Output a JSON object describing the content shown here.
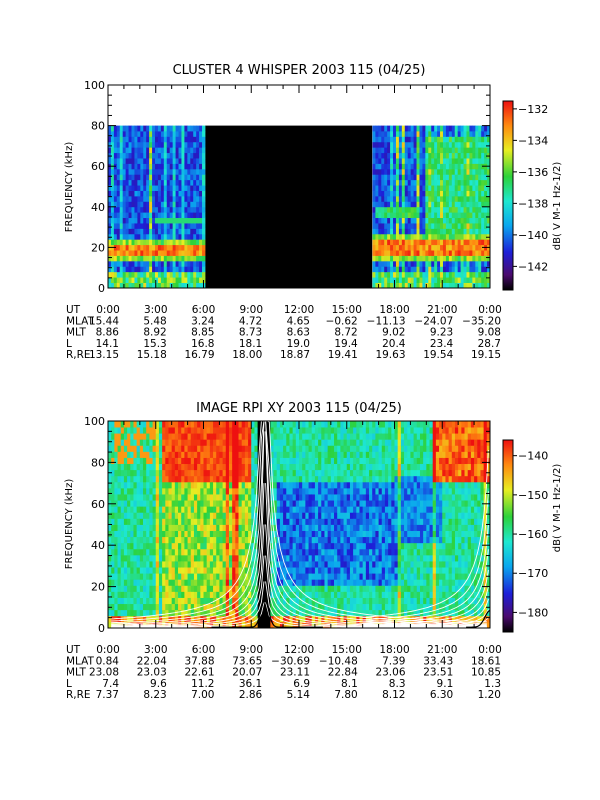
{
  "chart_data": [
    {
      "type": "heatmap",
      "title": "CLUSTER 4 WHISPER 2003 115 (04/25)",
      "ylabel": "FREQUENCY (kHz)",
      "ylim": [
        0,
        100
      ],
      "yticks": [
        0,
        20,
        40,
        60,
        80,
        100
      ],
      "xlim": [
        0,
        24
      ],
      "xtick_labels": [
        "0:00",
        "3:00",
        "6:00",
        "9:00",
        "12:00",
        "15:00",
        "18:00",
        "21:00",
        "0:00"
      ],
      "colorbar": {
        "label": "dB( V M-1 Hz-1/2)",
        "range": [
          -143.5,
          -131.5
        ],
        "ticks": [
          -132,
          -134,
          -136,
          -138,
          -140,
          -142
        ],
        "tick_labels": [
          "−132",
          "−134",
          "−136",
          "−138",
          "−140",
          "−142"
        ]
      },
      "data_coverage": {
        "max_frequency_khz": 80,
        "gap_start_hour": 6.1,
        "gap_end_hour": 16.6
      },
      "band_features": [
        {
          "start_hour": 0.3,
          "end_hour": 6.1,
          "frequency_khz": 18
        },
        {
          "start_hour": 16.6,
          "end_hour": 24,
          "frequency_khz": 20
        }
      ],
      "ephemeris": {
        "rows": [
          {
            "label": "UT",
            "values": [
              "0:00",
              "3:00",
              "6:00",
              "9:00",
              "12:00",
              "15:00",
              "18:00",
              "21:00",
              "0:00"
            ]
          },
          {
            "label": "MLAT",
            "values": [
              "15.44",
              "5.48",
              "3.24",
              "4.72",
              "4.65",
              "−0.62",
              "−11.13",
              "−24.07",
              "−35.20"
            ]
          },
          {
            "label": "MLT",
            "values": [
              "8.86",
              "8.92",
              "8.85",
              "8.73",
              "8.63",
              "8.72",
              "9.02",
              "9.23",
              "9.08"
            ]
          },
          {
            "label": "L",
            "values": [
              "14.1",
              "15.3",
              "16.8",
              "18.1",
              "19.0",
              "19.4",
              "20.4",
              "23.4",
              "28.7"
            ]
          },
          {
            "label": "R,RE",
            "values": [
              "13.15",
              "15.18",
              "16.79",
              "18.00",
              "18.87",
              "19.41",
              "19.63",
              "19.54",
              "19.15"
            ]
          }
        ]
      }
    },
    {
      "type": "heatmap",
      "title": "IMAGE RPI XY 2003 115 (04/25)",
      "ylabel": "FREQUENCY (kHz)",
      "ylim": [
        0,
        100
      ],
      "yticks": [
        0,
        20,
        40,
        60,
        80,
        100
      ],
      "xlim": [
        0,
        24
      ],
      "xtick_labels": [
        "0:00",
        "3:00",
        "6:00",
        "9:00",
        "12:00",
        "15:00",
        "18:00",
        "21:00",
        "0:00"
      ],
      "colorbar": {
        "label": "dB( V M-1 Hz-1/2)",
        "range": [
          -185,
          -136
        ],
        "ticks": [
          -140,
          -150,
          -160,
          -170,
          -180
        ],
        "tick_labels": [
          "−140",
          "−150",
          "−160",
          "−170",
          "−180"
        ]
      },
      "overlay_curves": {
        "perigee_hour": 9.85,
        "color": "#ffffff"
      },
      "electron_density_curve": {
        "peak_hour": 9.85,
        "peak_frequency_khz": 13
      },
      "ephemeris": {
        "rows": [
          {
            "label": "UT",
            "values": [
              "0:00",
              "3:00",
              "6:00",
              "9:00",
              "12:00",
              "15:00",
              "18:00",
              "21:00",
              "0:00"
            ]
          },
          {
            "label": "MLAT",
            "values": [
              "0.84",
              "22.04",
              "37.88",
              "73.65",
              "−30.69",
              "−10.48",
              "7.39",
              "33.43",
              "18.61"
            ]
          },
          {
            "label": "MLT",
            "values": [
              "23.08",
              "23.03",
              "22.61",
              "20.07",
              "23.11",
              "22.84",
              "23.06",
              "23.51",
              "10.85"
            ]
          },
          {
            "label": "L",
            "values": [
              "7.4",
              "9.6",
              "11.2",
              "36.1",
              "6.9",
              "8.1",
              "8.3",
              "9.1",
              "1.3"
            ]
          },
          {
            "label": "R,RE",
            "values": [
              "7.37",
              "8.23",
              "7.00",
              "2.86",
              "5.14",
              "7.80",
              "8.12",
              "6.30",
              "1.20"
            ]
          }
        ]
      }
    }
  ]
}
